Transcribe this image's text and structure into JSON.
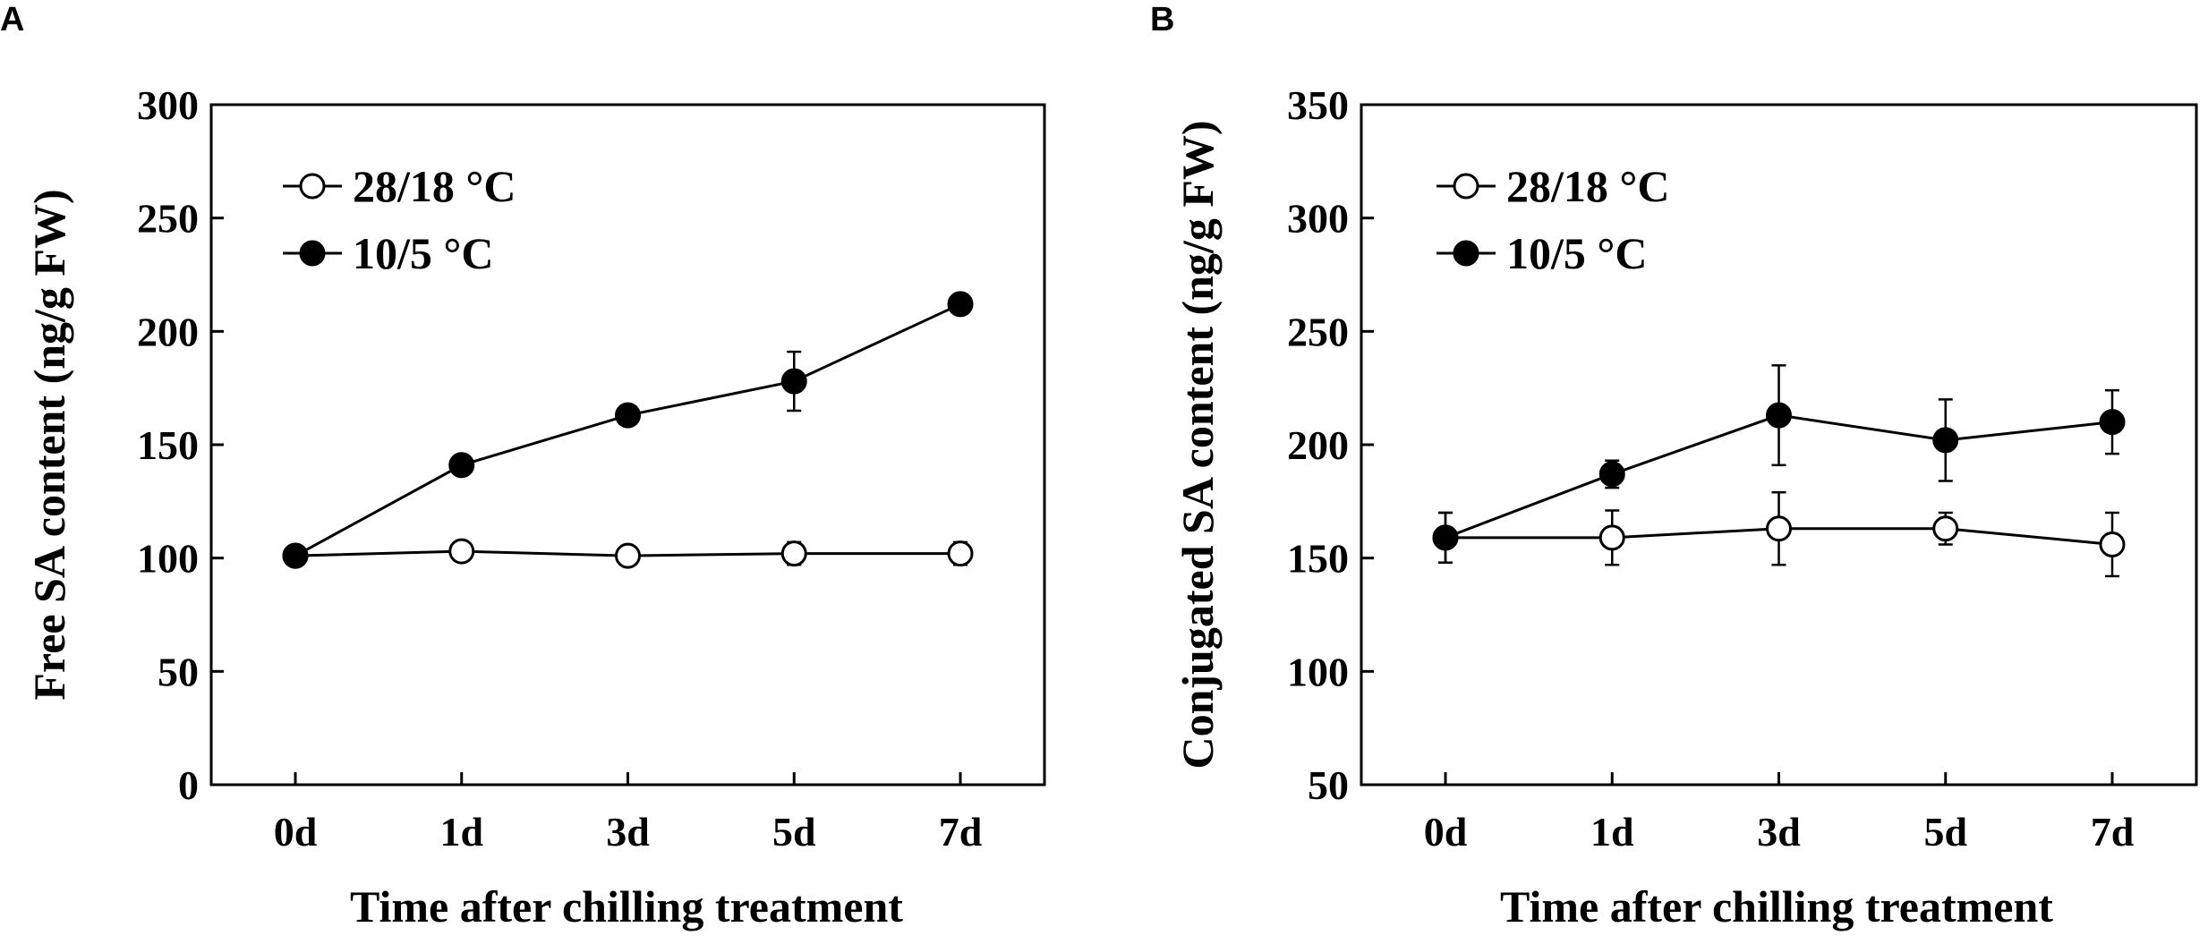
{
  "chart_data": [
    {
      "panel": "A",
      "type": "line",
      "title": "",
      "xlabel": "Time after chilling treatment",
      "ylabel": "Free SA content (ng/g FW)",
      "categories": [
        "0d",
        "1d",
        "3d",
        "5d",
        "7d"
      ],
      "ylim": [
        0,
        300
      ],
      "yticks": [
        0,
        50,
        100,
        150,
        200,
        250,
        300
      ],
      "legend_position": "top-left",
      "series": [
        {
          "name": "28/18 °C",
          "marker": "open-circle",
          "values": [
            101,
            103,
            101,
            102,
            102
          ],
          "errors": [
            0,
            4,
            4,
            5,
            5
          ]
        },
        {
          "name": "10/5 °C",
          "marker": "filled-circle",
          "values": [
            101,
            141,
            163,
            178,
            212
          ],
          "errors": [
            0,
            0,
            0,
            13,
            0
          ]
        }
      ]
    },
    {
      "panel": "B",
      "type": "line",
      "title": "",
      "xlabel": "Time after chilling treatment",
      "ylabel": "Conjugated SA content (ng/g FW)",
      "categories": [
        "0d",
        "1d",
        "3d",
        "5d",
        "7d"
      ],
      "ylim": [
        50,
        350
      ],
      "yticks": [
        50,
        100,
        150,
        200,
        250,
        300,
        350
      ],
      "legend_position": "top-left",
      "series": [
        {
          "name": "28/18 °C",
          "marker": "open-circle",
          "values": [
            159,
            159,
            163,
            163,
            156
          ],
          "errors": [
            11,
            12,
            16,
            7,
            14
          ]
        },
        {
          "name": "10/5 °C",
          "marker": "filled-circle",
          "values": [
            159,
            187,
            213,
            202,
            210
          ],
          "errors": [
            11,
            6,
            22,
            18,
            14
          ]
        }
      ]
    }
  ]
}
